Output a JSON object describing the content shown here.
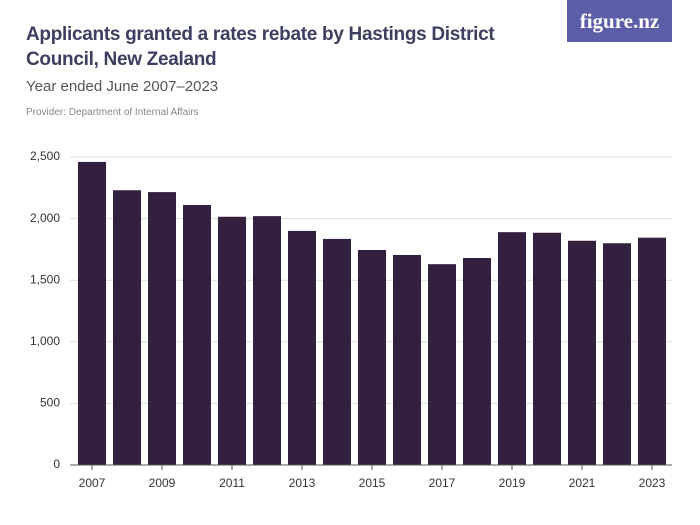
{
  "brand": "figure.nz",
  "chart_data": {
    "type": "bar",
    "title": "Applicants granted a rates rebate by Hastings District Council, New Zealand",
    "subtitle": "Year ended June 2007–2023",
    "source": "Provider: Department of Internal Affairs",
    "categories": [
      "2007",
      null,
      "2009",
      null,
      "2011",
      null,
      "2013",
      null,
      "2015",
      null,
      "2017",
      null,
      "2019",
      null,
      "2021",
      null,
      "2023"
    ],
    "values": [
      2460,
      2230,
      2215,
      2110,
      2015,
      2020,
      1900,
      1835,
      1745,
      1705,
      1630,
      1680,
      1890,
      1885,
      1820,
      1800,
      1845
    ],
    "color": "#33203f",
    "ylim": [
      0,
      2500
    ],
    "yticks": [
      0,
      500,
      {
        "value": 1000,
        "label": "1,000"
      },
      {
        "value": 1500,
        "label": "1,500"
      },
      {
        "value": 2000,
        "label": "2,000"
      },
      {
        "value": 2500,
        "label": "2,500"
      }
    ],
    "grid": true
  }
}
